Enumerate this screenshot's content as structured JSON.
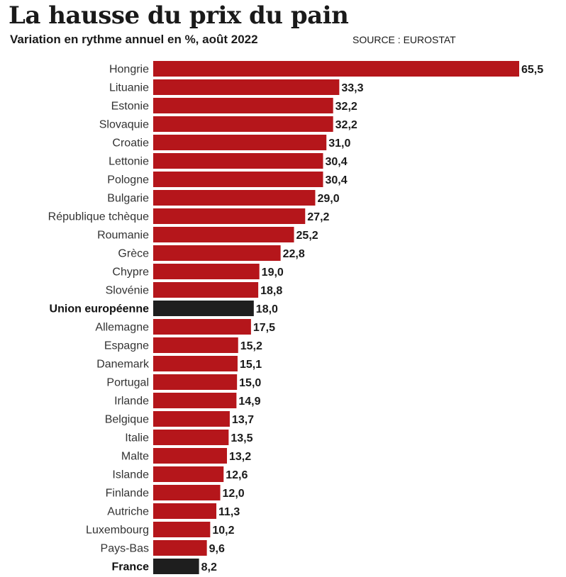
{
  "header": {
    "title": "La hausse du prix du pain",
    "subtitle": "Variation en rythme annuel en %, août 2022",
    "source": "SOURCE : EUROSTAT"
  },
  "colors": {
    "bar": "#b5161b",
    "highlight": "#1e1e1e"
  },
  "chart_data": {
    "type": "bar",
    "orientation": "horizontal",
    "title": "La hausse du prix du pain",
    "subtitle": "Variation en rythme annuel en %, août 2022",
    "categories": [
      "Hongrie",
      "Lituanie",
      "Estonie",
      "Slovaquie",
      "Croatie",
      "Lettonie",
      "Pologne",
      "Bulgarie",
      "République tchèque",
      "Roumanie",
      "Grèce",
      "Chypre",
      "Slovénie",
      "Union européenne",
      "Allemagne",
      "Espagne",
      "Danemark",
      "Portugal",
      "Irlande",
      "Belgique",
      "Italie",
      "Malte",
      "Islande",
      "Finlande",
      "Autriche",
      "Luxembourg",
      "Pays-Bas",
      "France"
    ],
    "values": [
      65.5,
      33.3,
      32.2,
      32.2,
      31.0,
      30.4,
      30.4,
      29.0,
      27.2,
      25.2,
      22.8,
      19.0,
      18.8,
      18.0,
      17.5,
      15.2,
      15.1,
      15.0,
      14.9,
      13.7,
      13.5,
      13.2,
      12.6,
      12.0,
      11.3,
      10.2,
      9.6,
      8.2
    ],
    "value_labels": [
      "65,5",
      "33,3",
      "32,2",
      "32,2",
      "31,0",
      "30,4",
      "30,4",
      "29,0",
      "27,2",
      "25,2",
      "22,8",
      "19,0",
      "18,8",
      "18,0",
      "17,5",
      "15,2",
      "15,1",
      "15,0",
      "14,9",
      "13,7",
      "13,5",
      "13,2",
      "12,6",
      "12,0",
      "11,3",
      "10,2",
      "9,6",
      "8,2"
    ],
    "highlighted": [
      "Union européenne",
      "France"
    ],
    "xlim": [
      0,
      65.5
    ],
    "grid": false,
    "legend": "none"
  }
}
